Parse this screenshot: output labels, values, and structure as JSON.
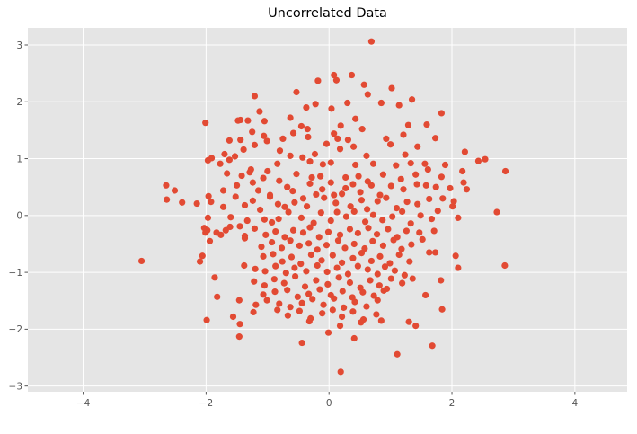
{
  "chart_data": {
    "type": "scatter",
    "title": "Uncorrelated Data",
    "xlabel": "",
    "ylabel": "",
    "xlim": [
      -4.9,
      4.85
    ],
    "ylim": [
      -3.1,
      3.3
    ],
    "xticks": [
      -4,
      -2,
      0,
      2,
      4
    ],
    "yticks": [
      -3,
      -2,
      -1,
      0,
      1,
      2,
      3
    ],
    "grid": true,
    "colors": {
      "background": "#e5e5e5",
      "grid": "#ffffff",
      "points": "#e24a33"
    },
    "points": [
      [
        0.69,
        3.06
      ],
      [
        0.08,
        2.47
      ],
      [
        0.37,
        2.47
      ],
      [
        -0.18,
        2.37
      ],
      [
        0.12,
        2.38
      ],
      [
        0.57,
        2.3
      ],
      [
        -0.53,
        2.17
      ],
      [
        1.02,
        2.24
      ],
      [
        0.63,
        2.13
      ],
      [
        -1.21,
        2.1
      ],
      [
        -0.37,
        1.9
      ],
      [
        0.04,
        1.88
      ],
      [
        0.3,
        1.98
      ],
      [
        0.85,
        1.98
      ],
      [
        1.35,
        2.04
      ],
      [
        1.14,
        1.94
      ],
      [
        -0.22,
        1.96
      ],
      [
        -1.13,
        1.83
      ],
      [
        1.83,
        1.8
      ],
      [
        -1.48,
        1.67
      ],
      [
        -1.44,
        1.68
      ],
      [
        -1.32,
        1.67
      ],
      [
        -1.05,
        1.66
      ],
      [
        -0.63,
        1.72
      ],
      [
        -0.35,
        1.52
      ],
      [
        0.43,
        1.7
      ],
      [
        0.19,
        1.58
      ],
      [
        -0.45,
        1.57
      ],
      [
        1.29,
        1.59
      ],
      [
        1.59,
        1.6
      ],
      [
        -2.01,
        1.63
      ],
      [
        -1.25,
        1.47
      ],
      [
        -0.58,
        1.45
      ],
      [
        0.08,
        1.44
      ],
      [
        0.54,
        1.52
      ],
      [
        0.31,
        1.33
      ],
      [
        -1.62,
        1.32
      ],
      [
        -1.44,
        1.33
      ],
      [
        -1.06,
        1.4
      ],
      [
        -0.75,
        1.35
      ],
      [
        -0.34,
        1.38
      ],
      [
        0.14,
        1.35
      ],
      [
        0.93,
        1.35
      ],
      [
        1.21,
        1.42
      ],
      [
        1.73,
        1.36
      ],
      [
        -1.01,
        1.31
      ],
      [
        -1.21,
        1.24
      ],
      [
        -0.04,
        1.26
      ],
      [
        0.4,
        1.21
      ],
      [
        1.0,
        1.25
      ],
      [
        1.44,
        1.21
      ],
      [
        -1.7,
        1.08
      ],
      [
        -1.39,
        1.16
      ],
      [
        -0.8,
        1.14
      ],
      [
        -0.23,
        1.08
      ],
      [
        0.18,
        1.17
      ],
      [
        0.61,
        1.05
      ],
      [
        1.24,
        1.07
      ],
      [
        2.21,
        1.12
      ],
      [
        -1.91,
        1.01
      ],
      [
        -1.77,
        0.91
      ],
      [
        -1.62,
        0.98
      ],
      [
        -1.53,
        1.04
      ],
      [
        -1.27,
        0.81
      ],
      [
        -1.0,
        0.78
      ],
      [
        -0.84,
        0.91
      ],
      [
        -0.63,
        1.05
      ],
      [
        -0.43,
        1.02
      ],
      [
        -0.31,
        0.95
      ],
      [
        -0.1,
        0.9
      ],
      [
        0.03,
        0.93
      ],
      [
        0.43,
        0.89
      ],
      [
        0.72,
        0.91
      ],
      [
        1.09,
        0.88
      ],
      [
        1.33,
        0.92
      ],
      [
        1.56,
        0.91
      ],
      [
        1.89,
        0.89
      ],
      [
        2.43,
        0.96
      ],
      [
        2.54,
        0.99
      ],
      [
        -1.97,
        0.97
      ],
      [
        -1.66,
        0.74
      ],
      [
        -1.42,
        0.7
      ],
      [
        -1.29,
        0.76
      ],
      [
        -1.07,
        0.66
      ],
      [
        -0.81,
        0.61
      ],
      [
        -0.53,
        0.73
      ],
      [
        -0.28,
        0.67
      ],
      [
        -0.14,
        0.69
      ],
      [
        0.27,
        0.67
      ],
      [
        0.48,
        0.69
      ],
      [
        0.63,
        0.6
      ],
      [
        0.88,
        0.72
      ],
      [
        1.17,
        0.64
      ],
      [
        1.41,
        0.72
      ],
      [
        1.61,
        0.81
      ],
      [
        1.83,
        0.68
      ],
      [
        2.17,
        0.78
      ],
      [
        2.87,
        0.78
      ],
      [
        -2.65,
        0.53
      ],
      [
        -2.51,
        0.44
      ],
      [
        -2.39,
        0.23
      ],
      [
        -2.15,
        0.21
      ],
      [
        -1.96,
        0.34
      ],
      [
        -1.72,
        0.44
      ],
      [
        -1.5,
        0.53
      ],
      [
        -1.24,
        0.58
      ],
      [
        -1.15,
        0.44
      ],
      [
        -0.96,
        0.36
      ],
      [
        -0.68,
        0.5
      ],
      [
        -0.59,
        0.43
      ],
      [
        -0.42,
        0.3
      ],
      [
        -0.31,
        0.56
      ],
      [
        -0.11,
        0.46
      ],
      [
        0.03,
        0.58
      ],
      [
        0.08,
        0.36
      ],
      [
        0.27,
        0.48
      ],
      [
        0.39,
        0.55
      ],
      [
        0.51,
        0.41
      ],
      [
        0.69,
        0.53
      ],
      [
        0.83,
        0.36
      ],
      [
        1.01,
        0.52
      ],
      [
        1.21,
        0.46
      ],
      [
        1.43,
        0.55
      ],
      [
        1.58,
        0.53
      ],
      [
        1.74,
        0.5
      ],
      [
        1.97,
        0.48
      ],
      [
        2.19,
        0.58
      ],
      [
        2.24,
        0.46
      ],
      [
        -2.64,
        0.28
      ],
      [
        -1.92,
        0.24
      ],
      [
        -1.72,
        0.15
      ],
      [
        -1.52,
        0.33
      ],
      [
        -1.37,
        0.18
      ],
      [
        -1.24,
        0.26
      ],
      [
        -1.12,
        0.1
      ],
      [
        -0.96,
        0.33
      ],
      [
        -0.83,
        0.2
      ],
      [
        -0.72,
        0.15
      ],
      [
        -0.56,
        0.23
      ],
      [
        -0.36,
        0.16
      ],
      [
        -0.21,
        0.37
      ],
      [
        -0.08,
        0.31
      ],
      [
        0.11,
        0.22
      ],
      [
        0.21,
        0.38
      ],
      [
        0.35,
        0.16
      ],
      [
        0.53,
        0.27
      ],
      [
        0.62,
        0.11
      ],
      [
        0.79,
        0.25
      ],
      [
        0.93,
        0.31
      ],
      [
        1.1,
        0.13
      ],
      [
        1.27,
        0.24
      ],
      [
        1.44,
        0.2
      ],
      [
        1.63,
        0.29
      ],
      [
        1.85,
        0.3
      ],
      [
        2.01,
        0.16
      ],
      [
        2.03,
        0.25
      ],
      [
        2.73,
        0.06
      ],
      [
        -1.97,
        -0.04
      ],
      [
        -1.6,
        -0.03
      ],
      [
        -1.33,
        -0.09
      ],
      [
        -1.05,
        -0.07
      ],
      [
        -0.93,
        -0.12
      ],
      [
        -0.82,
        -0.06
      ],
      [
        -0.66,
        0.06
      ],
      [
        -0.45,
        -0.04
      ],
      [
        -0.25,
        -0.13
      ],
      [
        -0.13,
        0.05
      ],
      [
        0.03,
        -0.09
      ],
      [
        0.13,
        0.06
      ],
      [
        0.28,
        -0.02
      ],
      [
        0.41,
        0.07
      ],
      [
        0.59,
        -0.11
      ],
      [
        0.72,
        0.01
      ],
      [
        0.87,
        -0.08
      ],
      [
        1.03,
        -0.02
      ],
      [
        1.19,
        0.07
      ],
      [
        1.33,
        -0.14
      ],
      [
        1.49,
        0.0
      ],
      [
        1.67,
        -0.06
      ],
      [
        1.77,
        0.08
      ],
      [
        2.1,
        -0.04
      ],
      [
        -2.03,
        -0.22
      ],
      [
        -1.83,
        -0.3
      ],
      [
        -1.68,
        -0.26
      ],
      [
        -1.45,
        -0.19
      ],
      [
        -1.21,
        -0.23
      ],
      [
        -1.03,
        -0.34
      ],
      [
        -0.87,
        -0.28
      ],
      [
        -0.72,
        -0.38
      ],
      [
        -0.58,
        -0.26
      ],
      [
        -0.42,
        -0.3
      ],
      [
        -0.31,
        -0.21
      ],
      [
        -0.16,
        -0.38
      ],
      [
        -0.01,
        -0.29
      ],
      [
        0.18,
        -0.34
      ],
      [
        0.34,
        -0.24
      ],
      [
        0.47,
        -0.31
      ],
      [
        0.64,
        -0.22
      ],
      [
        0.78,
        -0.33
      ],
      [
        0.96,
        -0.24
      ],
      [
        1.11,
        -0.38
      ],
      [
        1.26,
        -0.27
      ],
      [
        1.47,
        -0.3
      ],
      [
        1.71,
        -0.27
      ],
      [
        -1.98,
        -0.26
      ],
      [
        -1.76,
        -0.34
      ],
      [
        -1.61,
        -0.2
      ],
      [
        -1.37,
        -0.4
      ],
      [
        -2.01,
        -0.3
      ],
      [
        -1.94,
        -0.45
      ],
      [
        -1.37,
        -0.36
      ],
      [
        -1.1,
        -0.55
      ],
      [
        -0.93,
        -0.47
      ],
      [
        -0.77,
        -0.57
      ],
      [
        -0.63,
        -0.44
      ],
      [
        -0.48,
        -0.53
      ],
      [
        -0.33,
        -0.49
      ],
      [
        -0.19,
        -0.6
      ],
      [
        -0.04,
        -0.52
      ],
      [
        0.15,
        -0.44
      ],
      [
        0.26,
        -0.57
      ],
      [
        0.41,
        -0.5
      ],
      [
        0.58,
        -0.58
      ],
      [
        0.71,
        -0.45
      ],
      [
        0.88,
        -0.53
      ],
      [
        1.05,
        -0.43
      ],
      [
        1.18,
        -0.59
      ],
      [
        1.34,
        -0.51
      ],
      [
        1.52,
        -0.42
      ],
      [
        -1.07,
        -0.72
      ],
      [
        -0.91,
        -0.68
      ],
      [
        -0.76,
        -0.81
      ],
      [
        -0.61,
        -0.73
      ],
      [
        -0.46,
        -0.85
      ],
      [
        -0.29,
        -0.69
      ],
      [
        -0.12,
        -0.79
      ],
      [
        0.06,
        -0.7
      ],
      [
        0.21,
        -0.83
      ],
      [
        0.39,
        -0.75
      ],
      [
        0.53,
        -0.66
      ],
      [
        0.69,
        -0.8
      ],
      [
        0.83,
        -0.72
      ],
      [
        0.99,
        -0.84
      ],
      [
        1.14,
        -0.69
      ],
      [
        1.31,
        -0.81
      ],
      [
        1.63,
        -0.65
      ],
      [
        1.73,
        -0.65
      ],
      [
        2.06,
        -0.71
      ],
      [
        -3.05,
        -0.8
      ],
      [
        -2.1,
        -0.81
      ],
      [
        -2.06,
        -0.71
      ],
      [
        -1.38,
        -0.88
      ],
      [
        -1.2,
        -0.94
      ],
      [
        -1.04,
        -0.98
      ],
      [
        -0.87,
        -0.89
      ],
      [
        -0.7,
        -1.01
      ],
      [
        -0.56,
        -0.92
      ],
      [
        -0.37,
        -0.98
      ],
      [
        -0.19,
        -0.88
      ],
      [
        -0.03,
        -0.99
      ],
      [
        0.13,
        -0.92
      ],
      [
        0.31,
        -1.03
      ],
      [
        0.47,
        -0.89
      ],
      [
        0.63,
        -0.95
      ],
      [
        0.79,
        -1.03
      ],
      [
        0.91,
        -0.9
      ],
      [
        1.07,
        -0.97
      ],
      [
        1.23,
        -1.05
      ],
      [
        2.1,
        -0.92
      ],
      [
        2.86,
        -0.88
      ],
      [
        -1.86,
        -1.09
      ],
      [
        -1.22,
        -1.16
      ],
      [
        -1.05,
        -1.23
      ],
      [
        -0.89,
        -1.12
      ],
      [
        -0.73,
        -1.19
      ],
      [
        -0.55,
        -1.07
      ],
      [
        -0.39,
        -1.25
      ],
      [
        -0.21,
        -1.14
      ],
      [
        -0.02,
        -1.21
      ],
      [
        0.16,
        -1.09
      ],
      [
        0.34,
        -1.18
      ],
      [
        0.51,
        -1.27
      ],
      [
        0.67,
        -1.14
      ],
      [
        0.82,
        -1.23
      ],
      [
        1.01,
        -1.11
      ],
      [
        1.19,
        -1.19
      ],
      [
        1.36,
        -1.11
      ],
      [
        1.82,
        -1.14
      ],
      [
        -1.07,
        -1.39
      ],
      [
        -0.88,
        -1.34
      ],
      [
        -0.68,
        -1.31
      ],
      [
        -0.51,
        -1.43
      ],
      [
        -0.33,
        -1.38
      ],
      [
        -0.15,
        -1.3
      ],
      [
        0.03,
        -1.4
      ],
      [
        0.22,
        -1.33
      ],
      [
        0.38,
        -1.44
      ],
      [
        0.55,
        -1.35
      ],
      [
        0.73,
        -1.41
      ],
      [
        0.94,
        -1.29
      ],
      [
        0.89,
        -1.32
      ],
      [
        1.57,
        -1.4
      ],
      [
        -1.82,
        -1.43
      ],
      [
        -1.46,
        -1.49
      ],
      [
        -1.19,
        -1.57
      ],
      [
        -1.01,
        -1.49
      ],
      [
        -0.81,
        -1.55
      ],
      [
        -0.63,
        -1.61
      ],
      [
        -0.44,
        -1.54
      ],
      [
        -0.27,
        -1.47
      ],
      [
        -0.09,
        -1.57
      ],
      [
        0.08,
        -1.46
      ],
      [
        0.24,
        -1.62
      ],
      [
        0.42,
        -1.52
      ],
      [
        0.61,
        -1.6
      ],
      [
        0.79,
        -1.49
      ],
      [
        1.84,
        -1.65
      ],
      [
        -1.56,
        -1.78
      ],
      [
        -1.23,
        -1.7
      ],
      [
        -0.84,
        -1.66
      ],
      [
        -0.67,
        -1.76
      ],
      [
        -0.48,
        -1.68
      ],
      [
        -0.3,
        -1.81
      ],
      [
        -0.11,
        -1.72
      ],
      [
        0.06,
        -1.66
      ],
      [
        0.21,
        -1.78
      ],
      [
        0.39,
        -1.69
      ],
      [
        0.56,
        -1.83
      ],
      [
        0.77,
        -1.74
      ],
      [
        1.3,
        -1.87
      ],
      [
        1.41,
        -1.94
      ],
      [
        -1.99,
        -1.84
      ],
      [
        -1.45,
        -1.91
      ],
      [
        -0.32,
        -1.86
      ],
      [
        0.18,
        -1.94
      ],
      [
        0.52,
        -1.88
      ],
      [
        0.85,
        -1.85
      ],
      [
        -1.46,
        -2.13
      ],
      [
        -0.01,
        -2.06
      ],
      [
        0.41,
        -2.16
      ],
      [
        -0.44,
        -2.24
      ],
      [
        1.68,
        -2.29
      ],
      [
        1.11,
        -2.44
      ],
      [
        0.19,
        -2.75
      ]
    ]
  }
}
